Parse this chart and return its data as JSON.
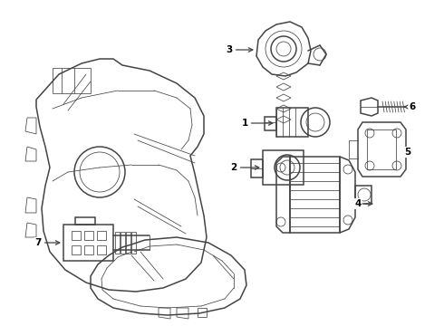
{
  "background_color": "#ffffff",
  "line_color": "#444444",
  "label_color": "#000000",
  "fig_width": 4.9,
  "fig_height": 3.6,
  "dpi": 100,
  "label_fontsize": 7.5,
  "lw_main": 1.1,
  "lw_thin": 0.55,
  "lw_thick": 1.4
}
